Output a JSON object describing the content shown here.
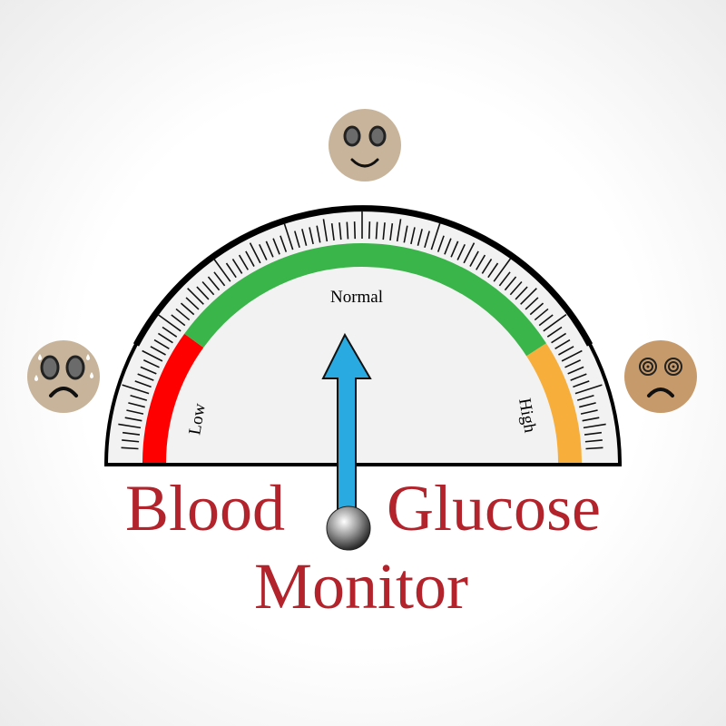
{
  "gauge": {
    "labels": {
      "low": "Low",
      "normal": "Normal",
      "high": "High"
    },
    "needle_position": "normal-center",
    "colors": {
      "low": "#ff0000",
      "normal": "#3ab54a",
      "high": "#f7ae3b",
      "needle": "#29abe2",
      "face": "#f2f2f2",
      "rim": "#000000"
    }
  },
  "faces": [
    {
      "name": "low-sweating-sad-face",
      "color": "#c8b49a"
    },
    {
      "name": "normal-happy-face",
      "color": "#c8b49a"
    },
    {
      "name": "high-dizzy-sad-face",
      "color": "#c69a6a"
    }
  ],
  "title": {
    "line1_left": "Blood",
    "line1_right": "Glucose",
    "line2": "Monitor",
    "color": "#b2232c"
  }
}
